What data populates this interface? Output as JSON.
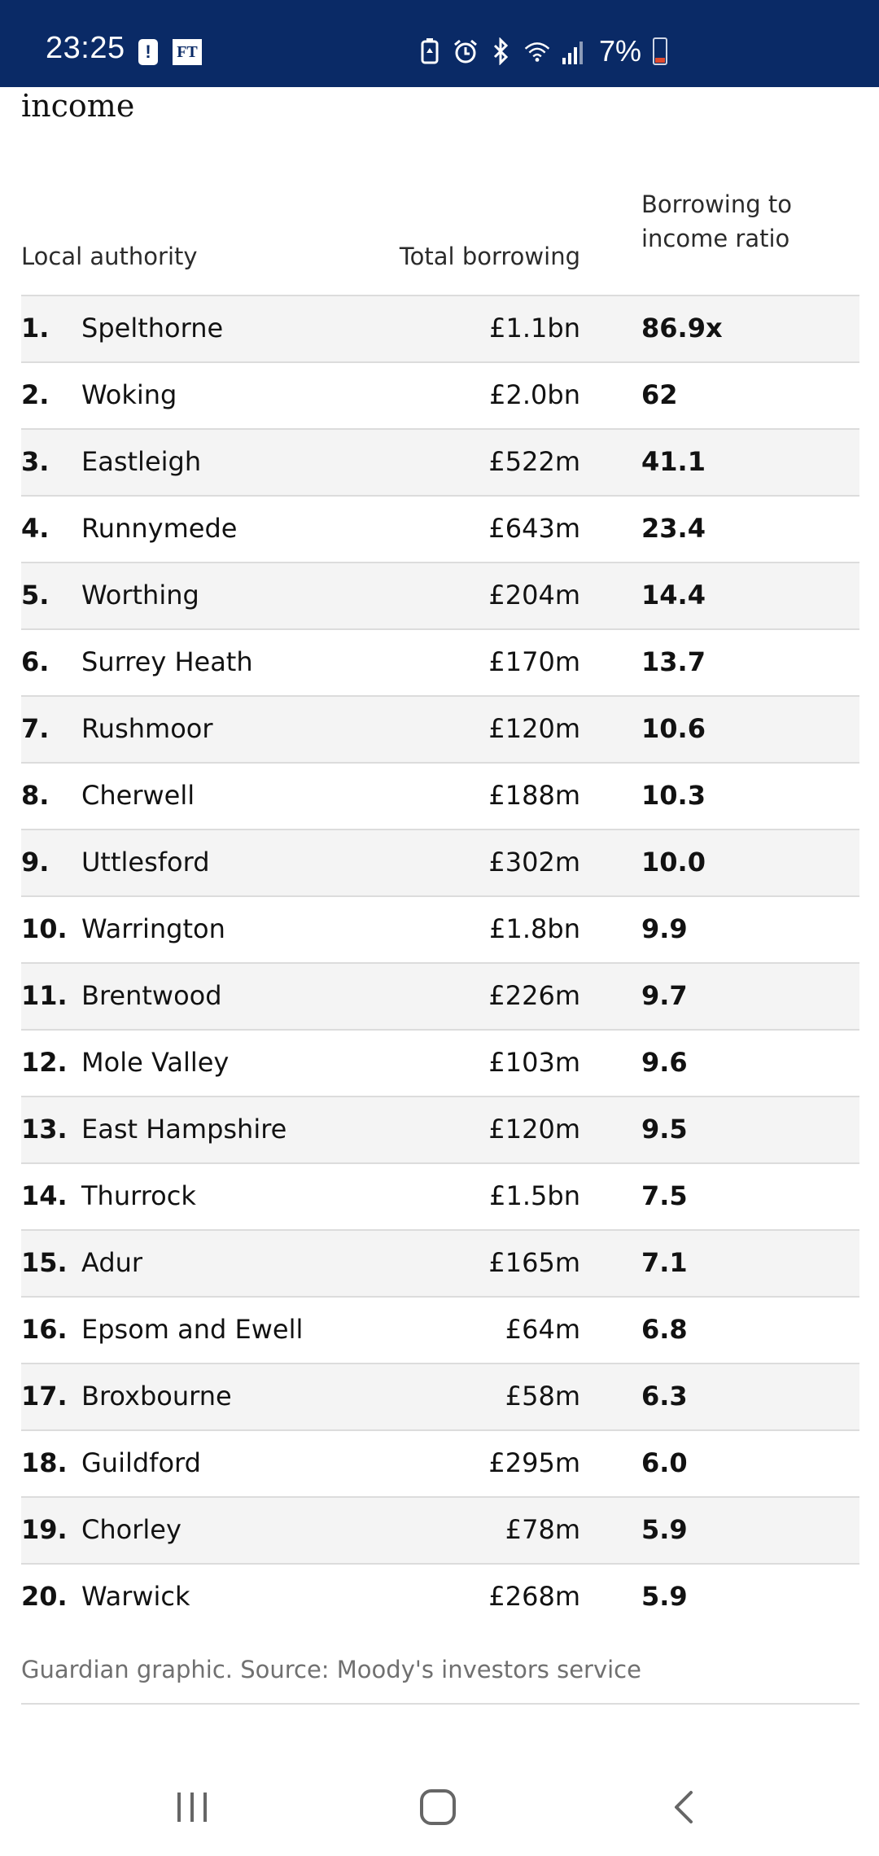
{
  "status_bar": {
    "time": "23:25",
    "notif_ft": "FT",
    "battery_text": "7%",
    "icons": [
      "alert-icon",
      "ft-icon",
      "battery-saver-icon",
      "alarm-icon",
      "bluetooth-icon",
      "wifi-icon",
      "signal-icon",
      "battery-icon"
    ]
  },
  "article": {
    "title_fragment": "income"
  },
  "table": {
    "headers": {
      "name": "Local authority",
      "total": "Total borrowing",
      "ratio_line1": "Borrowing to",
      "ratio_line2": "income ratio"
    },
    "rows": [
      {
        "rank": "1.",
        "name": "Spelthorne",
        "total": "£1.1bn",
        "ratio": "86.9x"
      },
      {
        "rank": "2.",
        "name": "Woking",
        "total": "£2.0bn",
        "ratio": "62"
      },
      {
        "rank": "3.",
        "name": "Eastleigh",
        "total": "£522m",
        "ratio": "41.1"
      },
      {
        "rank": "4.",
        "name": "Runnymede",
        "total": "£643m",
        "ratio": "23.4"
      },
      {
        "rank": "5.",
        "name": "Worthing",
        "total": "£204m",
        "ratio": "14.4"
      },
      {
        "rank": "6.",
        "name": "Surrey Heath",
        "total": "£170m",
        "ratio": "13.7"
      },
      {
        "rank": "7.",
        "name": "Rushmoor",
        "total": "£120m",
        "ratio": "10.6"
      },
      {
        "rank": "8.",
        "name": "Cherwell",
        "total": "£188m",
        "ratio": "10.3"
      },
      {
        "rank": "9.",
        "name": "Uttlesford",
        "total": "£302m",
        "ratio": "10.0"
      },
      {
        "rank": "10.",
        "name": "Warrington",
        "total": "£1.8bn",
        "ratio": "9.9"
      },
      {
        "rank": "11.",
        "name": "Brentwood",
        "total": "£226m",
        "ratio": "9.7"
      },
      {
        "rank": "12.",
        "name": "Mole Valley",
        "total": "£103m",
        "ratio": "9.6"
      },
      {
        "rank": "13.",
        "name": "East Hampshire",
        "total": "£120m",
        "ratio": "9.5"
      },
      {
        "rank": "14.",
        "name": "Thurrock",
        "total": "£1.5bn",
        "ratio": "7.5"
      },
      {
        "rank": "15.",
        "name": "Adur",
        "total": "£165m",
        "ratio": "7.1"
      },
      {
        "rank": "16.",
        "name": "Epsom and Ewell",
        "total": "£64m",
        "ratio": "6.8"
      },
      {
        "rank": "17.",
        "name": "Broxbourne",
        "total": "£58m",
        "ratio": "6.3"
      },
      {
        "rank": "18.",
        "name": "Guildford",
        "total": "£295m",
        "ratio": "6.0"
      },
      {
        "rank": "19.",
        "name": "Chorley",
        "total": "£78m",
        "ratio": "5.9"
      },
      {
        "rank": "20.",
        "name": "Warwick",
        "total": "£268m",
        "ratio": "5.9"
      }
    ],
    "source": "Guardian graphic. Source: Moody's investors service"
  },
  "nav_bar": {
    "icons": [
      "recent-apps-icon",
      "home-icon",
      "back-icon"
    ]
  },
  "colors": {
    "status_bar_bg": "#0a2a66",
    "row_shade": "#f4f4f4",
    "divider": "#dcdcdc",
    "source_text": "#707070"
  }
}
